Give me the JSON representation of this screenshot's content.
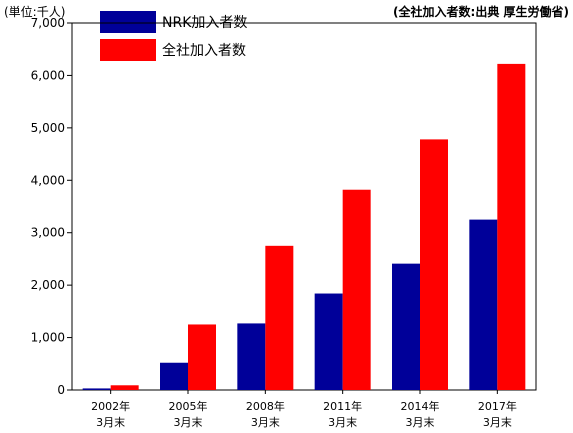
{
  "unit_label": "(単位:千人)",
  "source_label": "(全社加入者数:出典 厚生労働省)",
  "legend": [
    {
      "label": "NRK加入者数",
      "color": "#000099"
    },
    {
      "label": "全社加入者数",
      "color": "#ff0000"
    }
  ],
  "chart_data": {
    "type": "bar",
    "categories": [
      [
        "2002年",
        "3月末"
      ],
      [
        "2005年",
        "3月末"
      ],
      [
        "2008年",
        "3月末"
      ],
      [
        "2011年",
        "3月末"
      ],
      [
        "2014年",
        "3月末"
      ],
      [
        "2017年",
        "3月末"
      ]
    ],
    "series": [
      {
        "name": "NRK加入者数",
        "color": "#000099",
        "values": [
          30,
          520,
          1270,
          1840,
          2410,
          3250
        ]
      },
      {
        "name": "全社加入者数",
        "color": "#ff0000",
        "values": [
          90,
          1250,
          2750,
          3820,
          4780,
          6220
        ]
      }
    ],
    "ylim": [
      0,
      7000
    ],
    "yticks": [
      0,
      1000,
      2000,
      3000,
      4000,
      5000,
      6000,
      7000
    ],
    "ytick_labels": [
      "0",
      "1,000",
      "2,000",
      "3,000",
      "4,000",
      "5,000",
      "6,000",
      "7,000"
    ],
    "grid": false,
    "legend_position": "top-left"
  }
}
